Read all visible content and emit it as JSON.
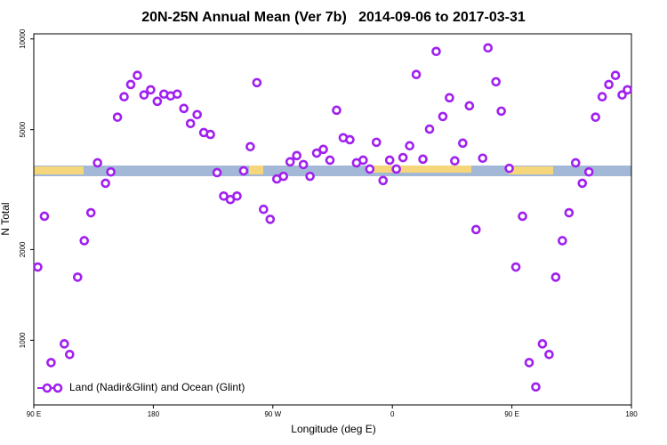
{
  "chart_data": {
    "type": "scatter",
    "title": "20N-25N Annual Mean (Ver 7b)   2014-09-06 to 2017-03-31",
    "x_label": "Longitude (deg E)",
    "y_label": "N Total",
    "log_y": true,
    "legend": "bottom-left",
    "xlim": [
      90,
      540
    ],
    "ylim": [
      610,
      10400
    ],
    "xticks": [
      {
        "value": 90,
        "label": "90 E"
      },
      180,
      {
        "value": 270,
        "label": "90 W"
      },
      {
        "value": 360,
        "label": "0"
      },
      {
        "value": 450,
        "label": "90 E"
      },
      {
        "value": 540,
        "label": "180"
      }
    ],
    "yticks": [
      1000,
      2000,
      5000,
      10000
    ],
    "series": [
      {
        "name": "Land (Nadir&Glint) and Ocean (Glint)",
        "color": "#a020f0",
        "x": [
          93,
          98,
          103,
          113,
          117,
          123,
          128,
          133,
          138,
          144,
          148,
          153,
          158,
          163,
          168,
          173,
          178,
          183,
          188,
          193,
          198,
          203,
          208,
          213,
          218,
          223,
          228,
          233,
          238,
          243,
          248,
          253,
          258,
          263,
          268,
          273,
          278,
          283,
          288,
          293,
          298,
          303,
          308,
          313,
          318,
          323,
          328,
          333,
          338,
          343,
          348,
          353,
          358,
          363,
          368,
          373,
          378,
          383,
          388,
          393,
          398,
          403,
          407,
          413,
          418,
          423,
          428,
          432,
          438,
          442,
          448,
          453,
          458,
          463,
          468,
          473,
          478,
          483,
          488,
          493,
          498,
          503,
          508,
          513,
          518,
          523,
          528,
          533,
          537
        ],
        "values": [
          1750,
          2580,
          843,
          973,
          897,
          1620,
          2140,
          2650,
          3880,
          3320,
          3620,
          5500,
          6430,
          7060,
          7570,
          6520,
          6780,
          6210,
          6560,
          6470,
          6560,
          5880,
          5240,
          5610,
          4890,
          4820,
          3600,
          3010,
          2930,
          3010,
          3650,
          4390,
          7160,
          2720,
          2520,
          3430,
          3500,
          3910,
          4100,
          3830,
          3500,
          4180,
          4300,
          3960,
          5800,
          4700,
          4630,
          3880,
          3960,
          3700,
          4540,
          3390,
          3960,
          3700,
          4040,
          4420,
          7620,
          3990,
          5020,
          9090,
          5530,
          6380,
          3940,
          4510,
          6000,
          2330,
          4020,
          9340,
          7210,
          5760,
          3720,
          1750,
          2580,
          843,
          700,
          973,
          897,
          1620,
          2140,
          2650,
          3880,
          3320,
          3620,
          5500,
          6430,
          7060,
          7570,
          6520,
          6780
        ]
      }
    ]
  }
}
